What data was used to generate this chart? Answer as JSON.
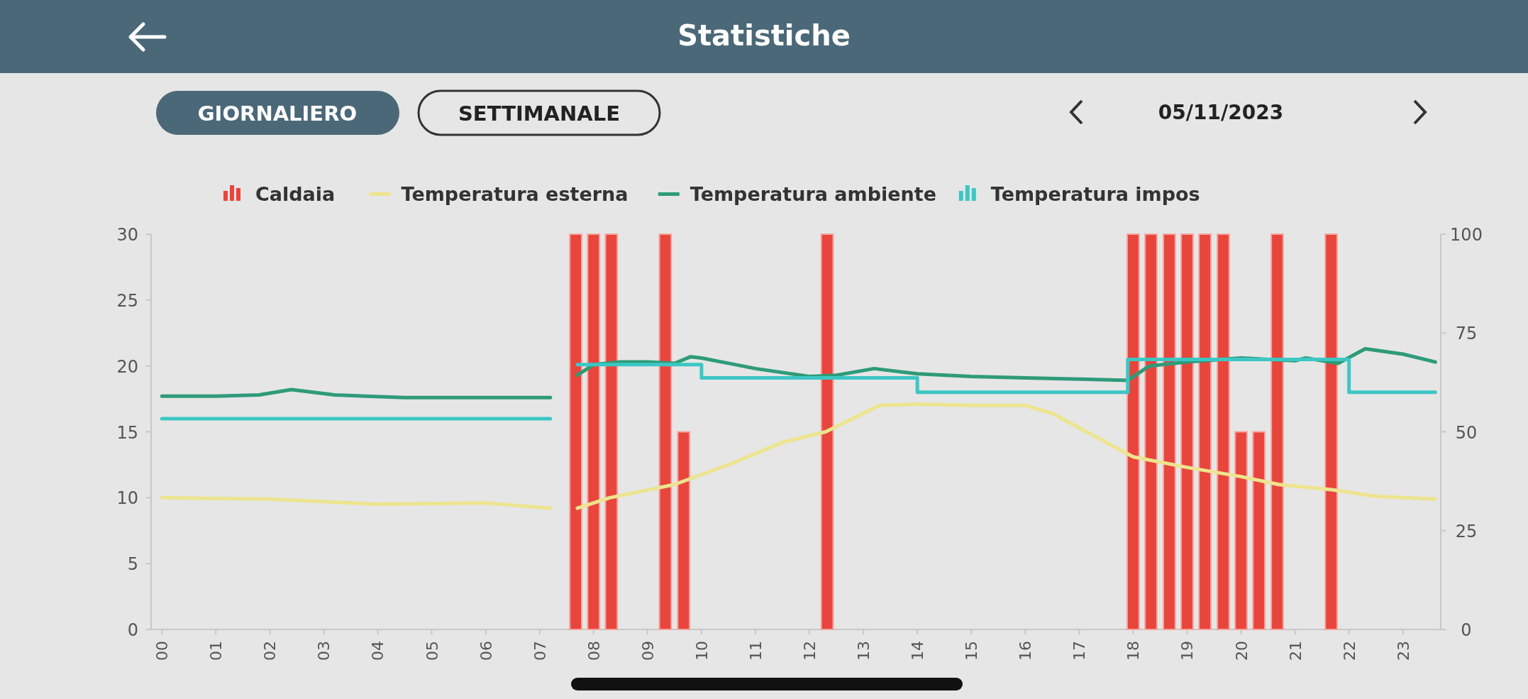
{
  "chart_data": {
    "type": "line",
    "title": "Statistiche",
    "subtitle": "05/11/2023",
    "annotations": [
      "GIORNALIERO",
      "SETTIMANALE"
    ],
    "xlim": [
      -0.2,
      23.7
    ],
    "xticks": [
      {
        "value": 0,
        "label": "00"
      },
      {
        "value": 1,
        "label": "01"
      },
      {
        "value": 2,
        "label": "02"
      },
      {
        "value": 3,
        "label": "03"
      },
      {
        "value": 4,
        "label": "04"
      },
      {
        "value": 5,
        "label": "05"
      },
      {
        "value": 6,
        "label": "06"
      },
      {
        "value": 7,
        "label": "07"
      },
      {
        "value": 8,
        "label": "08"
      },
      {
        "value": 9,
        "label": "09"
      },
      {
        "value": 10,
        "label": "10"
      },
      {
        "value": 11,
        "label": "11"
      },
      {
        "value": 12,
        "label": "12"
      },
      {
        "value": 13,
        "label": "13"
      },
      {
        "value": 14,
        "label": "14"
      },
      {
        "value": 15,
        "label": "15"
      },
      {
        "value": 16,
        "label": "16"
      },
      {
        "value": 17,
        "label": "17"
      },
      {
        "value": 18,
        "label": "18"
      },
      {
        "value": 19,
        "label": "19"
      },
      {
        "value": 20,
        "label": "20"
      },
      {
        "value": 21,
        "label": "21"
      },
      {
        "value": 22,
        "label": "22"
      },
      {
        "value": 23,
        "label": "23"
      }
    ],
    "ylim": [
      0,
      30
    ],
    "yticks": [
      0,
      5,
      10,
      15,
      20,
      25,
      30
    ],
    "y2lim": [
      0,
      100
    ],
    "y2ticks": [
      0,
      25,
      50,
      75,
      100
    ],
    "legend": "top",
    "grid": false,
    "marker": "none",
    "series": [
      {
        "name": "Caldaia",
        "type": "bar",
        "axis": "y2",
        "color": "#e8453c",
        "x": [
          7.67,
          8,
          8.33,
          9.33,
          9.67,
          12.33,
          18,
          18.33,
          18.67,
          19,
          19.33,
          19.67,
          20,
          20.33,
          20.67,
          21.67
        ],
        "values": [
          100,
          100,
          100,
          100,
          50,
          100,
          100,
          100,
          100,
          100,
          100,
          100,
          50,
          50,
          100,
          100
        ]
      },
      {
        "name": "Temperatura esterna",
        "color": "#ede48f",
        "x": [
          0,
          2,
          4,
          6,
          7.2,
          7.45,
          7.7,
          8.3,
          9.5,
          10.5,
          11.5,
          12.3,
          13.3,
          14,
          15,
          16,
          16.5,
          17,
          18,
          19,
          20,
          20.7,
          21.7,
          22.5,
          23.6
        ],
        "values": [
          10,
          9.9,
          9.5,
          9.6,
          9.2,
          null,
          9.2,
          10,
          11,
          12.5,
          14.2,
          15,
          17,
          17.1,
          17,
          17,
          16.4,
          15.3,
          13.1,
          12.3,
          11.6,
          11,
          10.6,
          10.1,
          9.9
        ]
      },
      {
        "name": "Temperatura ambiente",
        "color": "#2e9b78",
        "x": [
          0,
          1,
          1.8,
          2.4,
          3.2,
          4.5,
          6,
          7.2,
          7.45,
          7.7,
          8,
          8.5,
          9,
          9.5,
          9.8,
          10,
          11,
          12,
          12.5,
          13.2,
          14,
          15,
          16,
          17,
          17.9,
          18.3,
          19,
          20,
          21,
          21.2,
          21.8,
          22.3,
          23,
          23.6
        ],
        "values": [
          17.7,
          17.7,
          17.8,
          18.2,
          17.8,
          17.6,
          17.6,
          17.6,
          null,
          19.3,
          20.1,
          20.3,
          20.3,
          20.2,
          20.7,
          20.6,
          19.8,
          19.2,
          19.3,
          19.8,
          19.4,
          19.2,
          19.1,
          19.0,
          18.9,
          20.0,
          20.3,
          20.6,
          20.4,
          20.6,
          20.2,
          21.3,
          20.9,
          20.3
        ]
      },
      {
        "name": "Temperatura impos",
        "type": "step",
        "color": "#3cc7c4",
        "x": [
          0,
          7.2,
          7.45,
          7.7,
          10,
          14,
          17.9,
          22,
          23.6
        ],
        "values": [
          16,
          16,
          null,
          20.1,
          19.1,
          18,
          20.5,
          18,
          18
        ]
      }
    ]
  }
}
